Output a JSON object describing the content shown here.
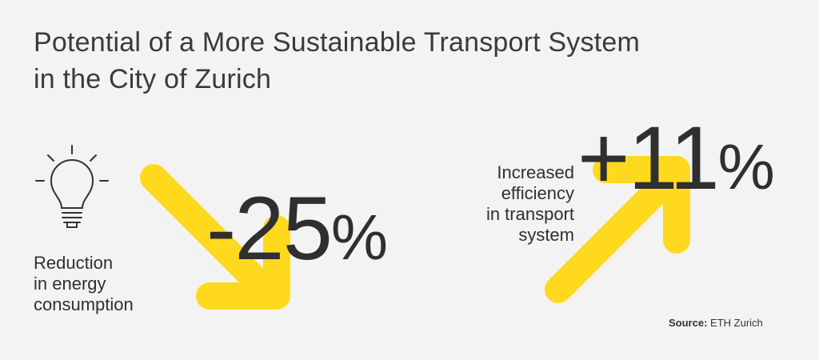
{
  "title": {
    "line1": "Potential of a More Sustainable Transport System",
    "line2": "in the City of Zurich"
  },
  "colors": {
    "accent": "#ffd91e",
    "text": "#333333",
    "background": "#f3f3f3"
  },
  "left_stat": {
    "icon": "lightbulb-icon",
    "value": "-25",
    "unit": "%",
    "label_lines": [
      "Reduction",
      "in energy",
      "consumption"
    ]
  },
  "right_stat": {
    "value": "+11",
    "unit": "%",
    "label_lines": [
      "Increased",
      "efficiency",
      "in transport",
      "system"
    ]
  },
  "source": {
    "prefix": "Source:",
    "name": "ETH Zurich"
  }
}
